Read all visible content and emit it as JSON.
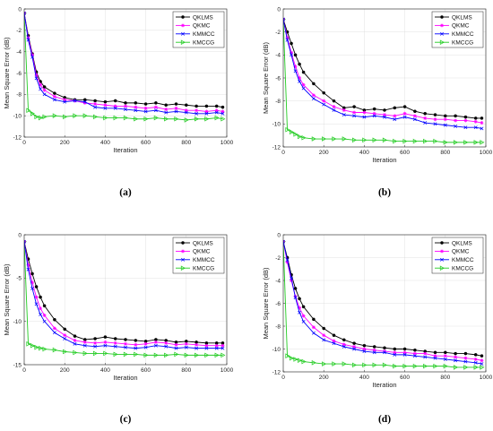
{
  "chart_data": [
    {
      "panel": "(a)",
      "type": "line",
      "xlabel": "Iteration",
      "ylabel": "Mean Square Error (dB)",
      "xlim": [
        0,
        1000
      ],
      "ylim": [
        -12,
        0
      ],
      "xticks": [
        0,
        200,
        400,
        600,
        800,
        1000
      ],
      "yticks": [
        0,
        -2,
        -4,
        -6,
        -8,
        -10,
        -12
      ],
      "grid": true,
      "legend": "top-right",
      "x": [
        0,
        20,
        40,
        60,
        80,
        100,
        150,
        200,
        250,
        300,
        350,
        400,
        450,
        500,
        550,
        600,
        650,
        700,
        750,
        800,
        850,
        900,
        950,
        980
      ],
      "series": [
        {
          "name": "QKLMS",
          "color": "#000000",
          "marker": "dot",
          "values": [
            -0.4,
            -2.5,
            -4.2,
            -5.9,
            -6.8,
            -7.3,
            -7.9,
            -8.3,
            -8.5,
            -8.5,
            -8.6,
            -8.7,
            -8.6,
            -8.8,
            -8.8,
            -8.9,
            -8.8,
            -9.0,
            -8.9,
            -9.0,
            -9.1,
            -9.1,
            -9.1,
            -9.2
          ]
        },
        {
          "name": "QKMC",
          "color": "#ff00ff",
          "marker": "star",
          "values": [
            -0.4,
            -2.7,
            -4.3,
            -6.2,
            -7.1,
            -7.6,
            -8.2,
            -8.5,
            -8.6,
            -8.8,
            -8.9,
            -9.0,
            -9.1,
            -9.1,
            -9.2,
            -9.3,
            -9.2,
            -9.4,
            -9.3,
            -9.5,
            -9.5,
            -9.6,
            -9.5,
            -9.6
          ]
        },
        {
          "name": "KMMCC",
          "color": "#0000ff",
          "marker": "x",
          "values": [
            -0.4,
            -2.9,
            -4.5,
            -6.5,
            -7.5,
            -8.0,
            -8.5,
            -8.7,
            -8.6,
            -8.7,
            -9.2,
            -9.3,
            -9.3,
            -9.4,
            -9.5,
            -9.6,
            -9.5,
            -9.7,
            -9.6,
            -9.7,
            -9.8,
            -9.8,
            -9.7,
            -9.8
          ]
        },
        {
          "name": "KMCCG",
          "color": "#22cc22",
          "marker": "tri",
          "values": [
            -0.4,
            -9.5,
            -9.8,
            -10.1,
            -10.2,
            -10.1,
            -10.0,
            -10.1,
            -10.0,
            -10.0,
            -10.1,
            -10.2,
            -10.2,
            -10.2,
            -10.3,
            -10.3,
            -10.2,
            -10.3,
            -10.3,
            -10.4,
            -10.3,
            -10.3,
            -10.2,
            -10.3
          ]
        }
      ]
    },
    {
      "panel": "(b)",
      "type": "line",
      "xlabel": "Iteration",
      "ylabel": "Mean Square Error (dB)",
      "xlim": [
        0,
        1000
      ],
      "ylim": [
        -12,
        0
      ],
      "xticks": [
        0,
        200,
        400,
        600,
        800,
        1000
      ],
      "yticks": [
        0,
        -2,
        -4,
        -6,
        -8,
        -10,
        -12
      ],
      "grid": true,
      "legend": "top-right",
      "x": [
        0,
        20,
        40,
        60,
        80,
        100,
        150,
        200,
        250,
        300,
        350,
        400,
        450,
        500,
        550,
        600,
        650,
        700,
        750,
        800,
        850,
        900,
        950,
        980
      ],
      "series": [
        {
          "name": "QKLMS",
          "color": "#000000",
          "marker": "dot",
          "values": [
            -0.9,
            -2.0,
            -3.0,
            -4.0,
            -4.8,
            -5.5,
            -6.5,
            -7.3,
            -8.0,
            -8.6,
            -8.5,
            -8.8,
            -8.7,
            -8.8,
            -8.6,
            -8.5,
            -8.9,
            -9.1,
            -9.2,
            -9.3,
            -9.3,
            -9.4,
            -9.5,
            -9.5
          ]
        },
        {
          "name": "QKMC",
          "color": "#ff00ff",
          "marker": "star",
          "values": [
            -0.9,
            -2.5,
            -3.8,
            -5.0,
            -6.0,
            -6.6,
            -7.5,
            -8.0,
            -8.5,
            -8.8,
            -9.0,
            -9.0,
            -9.1,
            -9.2,
            -9.3,
            -9.1,
            -9.3,
            -9.5,
            -9.6,
            -9.6,
            -9.7,
            -9.7,
            -9.8,
            -9.9
          ]
        },
        {
          "name": "KMMCC",
          "color": "#0000ff",
          "marker": "x",
          "values": [
            -0.9,
            -2.7,
            -4.0,
            -5.4,
            -6.3,
            -6.9,
            -7.8,
            -8.3,
            -8.8,
            -9.2,
            -9.3,
            -9.4,
            -9.3,
            -9.4,
            -9.6,
            -9.4,
            -9.6,
            -9.9,
            -10.0,
            -10.1,
            -10.2,
            -10.3,
            -10.3,
            -10.4
          ]
        },
        {
          "name": "KMCCG",
          "color": "#22cc22",
          "marker": "tri",
          "values": [
            -0.9,
            -10.5,
            -10.7,
            -10.9,
            -11.1,
            -11.2,
            -11.3,
            -11.3,
            -11.3,
            -11.3,
            -11.4,
            -11.4,
            -11.4,
            -11.4,
            -11.5,
            -11.5,
            -11.5,
            -11.5,
            -11.5,
            -11.6,
            -11.6,
            -11.6,
            -11.6,
            -11.6
          ]
        }
      ]
    },
    {
      "panel": "(c)",
      "type": "line",
      "xlabel": "Iteration",
      "ylabel": "Mean Square Error (dB)",
      "xlim": [
        0,
        1000
      ],
      "ylim": [
        -15,
        0
      ],
      "xticks": [
        0,
        200,
        400,
        600,
        800,
        1000
      ],
      "yticks": [
        0,
        -5,
        -10,
        -15
      ],
      "grid": true,
      "legend": "top-right",
      "x": [
        0,
        20,
        40,
        60,
        80,
        100,
        150,
        200,
        250,
        300,
        350,
        400,
        450,
        500,
        550,
        600,
        650,
        700,
        750,
        800,
        850,
        900,
        950,
        980
      ],
      "series": [
        {
          "name": "QKLMS",
          "color": "#000000",
          "marker": "dot",
          "values": [
            -0.8,
            -2.8,
            -4.5,
            -6.0,
            -7.2,
            -8.2,
            -9.8,
            -10.9,
            -11.7,
            -12.1,
            -12.0,
            -11.8,
            -12.0,
            -12.1,
            -12.2,
            -12.3,
            -12.1,
            -12.2,
            -12.4,
            -12.3,
            -12.4,
            -12.5,
            -12.5,
            -12.5
          ]
        },
        {
          "name": "QKMC",
          "color": "#ff00ff",
          "marker": "star",
          "values": [
            -0.8,
            -3.5,
            -5.5,
            -7.2,
            -8.5,
            -9.3,
            -10.8,
            -11.6,
            -12.2,
            -12.4,
            -12.5,
            -12.4,
            -12.5,
            -12.6,
            -12.7,
            -12.6,
            -12.4,
            -12.5,
            -12.7,
            -12.6,
            -12.7,
            -12.8,
            -12.8,
            -12.8
          ]
        },
        {
          "name": "KMMCC",
          "color": "#0000ff",
          "marker": "x",
          "values": [
            -0.8,
            -4.0,
            -6.2,
            -8.0,
            -9.2,
            -10.0,
            -11.3,
            -12.0,
            -12.6,
            -12.8,
            -12.9,
            -12.8,
            -12.9,
            -13.0,
            -13.1,
            -13.0,
            -12.8,
            -12.9,
            -13.1,
            -13.0,
            -13.1,
            -13.1,
            -13.1,
            -13.1
          ]
        },
        {
          "name": "KMCCG",
          "color": "#22cc22",
          "marker": "tri",
          "values": [
            -0.8,
            -12.6,
            -12.8,
            -13.0,
            -13.1,
            -13.2,
            -13.3,
            -13.5,
            -13.6,
            -13.7,
            -13.7,
            -13.7,
            -13.8,
            -13.8,
            -13.8,
            -13.9,
            -13.9,
            -13.9,
            -13.8,
            -13.9,
            -13.9,
            -13.9,
            -13.9,
            -13.9
          ]
        }
      ]
    },
    {
      "panel": "(d)",
      "type": "line",
      "xlabel": "Iteration",
      "ylabel": "Mean Square Error (dB)",
      "xlim": [
        0,
        1000
      ],
      "ylim": [
        -12,
        0
      ],
      "xticks": [
        0,
        200,
        400,
        600,
        800,
        1000
      ],
      "yticks": [
        0,
        -2,
        -4,
        -6,
        -8,
        -10,
        -12
      ],
      "grid": true,
      "legend": "top-right",
      "x": [
        0,
        20,
        40,
        60,
        80,
        100,
        150,
        200,
        250,
        300,
        350,
        400,
        450,
        500,
        550,
        600,
        650,
        700,
        750,
        800,
        850,
        900,
        950,
        980
      ],
      "series": [
        {
          "name": "QKLMS",
          "color": "#000000",
          "marker": "dot",
          "values": [
            -0.6,
            -2.0,
            -3.5,
            -4.7,
            -5.6,
            -6.3,
            -7.4,
            -8.2,
            -8.8,
            -9.2,
            -9.5,
            -9.7,
            -9.8,
            -9.9,
            -10.0,
            -10.0,
            -10.1,
            -10.2,
            -10.3,
            -10.3,
            -10.4,
            -10.4,
            -10.5,
            -10.6
          ]
        },
        {
          "name": "QKMC",
          "color": "#ff00ff",
          "marker": "star",
          "values": [
            -0.6,
            -2.4,
            -4.0,
            -5.4,
            -6.4,
            -7.1,
            -8.1,
            -8.8,
            -9.3,
            -9.6,
            -9.8,
            -10.0,
            -10.1,
            -10.2,
            -10.3,
            -10.3,
            -10.4,
            -10.4,
            -10.6,
            -10.6,
            -10.7,
            -10.8,
            -10.9,
            -11.0
          ]
        },
        {
          "name": "KMMCC",
          "color": "#0000ff",
          "marker": "x",
          "values": [
            -0.6,
            -2.2,
            -3.8,
            -5.5,
            -6.8,
            -7.6,
            -8.6,
            -9.2,
            -9.5,
            -9.8,
            -10.0,
            -10.2,
            -10.3,
            -10.3,
            -10.5,
            -10.5,
            -10.6,
            -10.7,
            -10.8,
            -10.9,
            -11.0,
            -11.1,
            -11.2,
            -11.3
          ]
        },
        {
          "name": "KMCCG",
          "color": "#22cc22",
          "marker": "tri",
          "values": [
            -0.6,
            -10.6,
            -10.8,
            -10.9,
            -11.0,
            -11.1,
            -11.2,
            -11.3,
            -11.3,
            -11.3,
            -11.4,
            -11.4,
            -11.4,
            -11.4,
            -11.5,
            -11.5,
            -11.5,
            -11.5,
            -11.5,
            -11.5,
            -11.6,
            -11.6,
            -11.6,
            -11.6
          ]
        }
      ]
    }
  ]
}
